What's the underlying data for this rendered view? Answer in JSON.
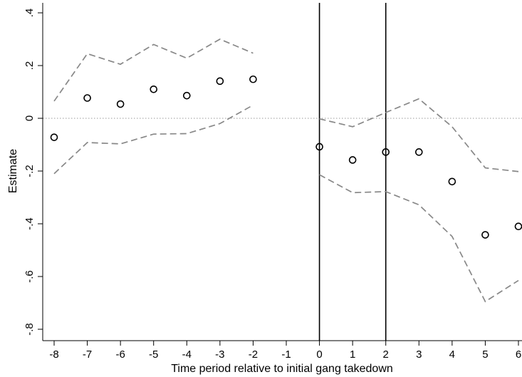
{
  "chart_data": {
    "type": "scatter",
    "xlabel": "Time period relative to initial gang takedown",
    "ylabel": "Estimate",
    "x_ticks": [
      -8,
      -7,
      -6,
      -5,
      -4,
      -3,
      -2,
      -1,
      0,
      1,
      2,
      3,
      4,
      5,
      6
    ],
    "x_tick_labels": [
      "-8",
      "-7",
      "-6",
      "-5",
      "-4",
      "-3",
      "-2",
      "-1",
      "0",
      "1",
      "2",
      "3",
      "4",
      "5",
      "6"
    ],
    "y_ticks": [
      -0.8,
      -0.6,
      -0.4,
      -0.2,
      0,
      0.2,
      0.4
    ],
    "y_tick_labels": [
      "-.8",
      "-.6",
      "-.4",
      "-.2",
      "0",
      ".2",
      ".4"
    ],
    "xlim": [
      -8.2,
      6.0
    ],
    "ylim": [
      -0.83,
      0.43
    ],
    "grid": false,
    "reference_lines": {
      "y": 0,
      "x": [
        0,
        2
      ]
    },
    "series": [
      {
        "x": [
          -8,
          -7,
          -6,
          -5,
          -4,
          -3,
          -2
        ],
        "estimate": [
          -0.072,
          0.077,
          0.054,
          0.11,
          0.086,
          0.141,
          0.148
        ],
        "ci_upper": [
          0.065,
          0.245,
          0.205,
          0.28,
          0.228,
          0.3,
          0.247
        ],
        "ci_lower": [
          -0.21,
          -0.092,
          -0.097,
          -0.06,
          -0.058,
          -0.02,
          0.05
        ]
      },
      {
        "x": [
          0,
          1,
          2,
          3,
          4,
          5,
          6
        ],
        "estimate": [
          -0.108,
          -0.158,
          -0.128,
          -0.128,
          -0.24,
          -0.442,
          -0.41
        ],
        "ci_upper": [
          -0.002,
          -0.032,
          0.022,
          0.074,
          -0.032,
          -0.188,
          -0.202
        ],
        "ci_lower": [
          -0.214,
          -0.282,
          -0.278,
          -0.328,
          -0.448,
          -0.695,
          -0.615
        ]
      }
    ],
    "colors": {
      "points": "#000000",
      "ci": "#888888",
      "zero_line": "#9a9a9a",
      "vlines": "#000000"
    }
  }
}
